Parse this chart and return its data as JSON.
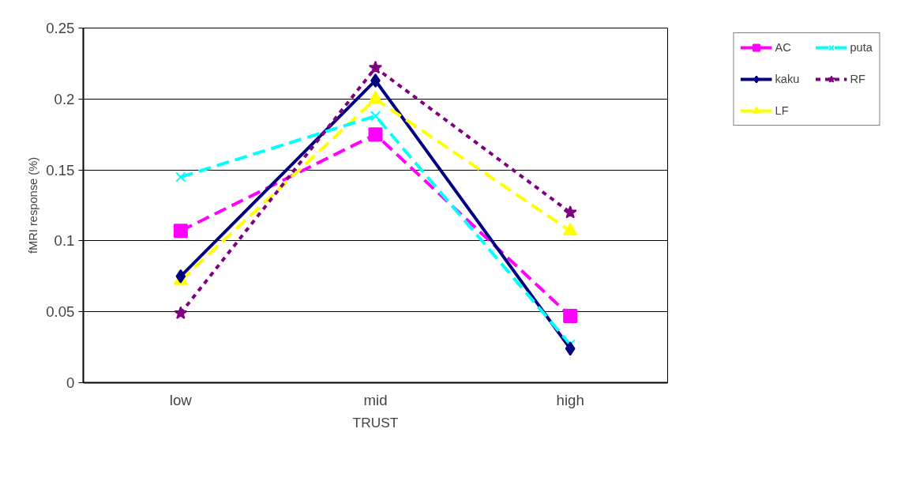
{
  "chart_data": {
    "type": "line",
    "xlabel": "TRUST",
    "ylabel": "fMRI response (%)",
    "categories": [
      "low",
      "mid",
      "high"
    ],
    "ylim": [
      0,
      0.25
    ],
    "yticks": [
      {
        "value": 0,
        "label": "0"
      },
      0.05,
      0.1,
      0.15,
      0.2,
      0.25
    ],
    "grid": "y",
    "legend": "right",
    "series": [
      {
        "name": "AC",
        "color": "#ff00ff",
        "values": [
          0.107,
          0.175,
          0.047
        ],
        "marker": "square",
        "line_style": "dashed"
      },
      {
        "name": "kaku",
        "color": "#000080",
        "values": [
          0.075,
          0.213,
          0.024
        ],
        "marker": "diamond",
        "line_style": "solid"
      },
      {
        "name": "LF",
        "color": "#ffff00",
        "values": [
          0.072,
          0.2,
          0.107
        ],
        "marker": "triangle",
        "line_style": "dashed"
      },
      {
        "name": "puta",
        "color": "#00ffff",
        "values": [
          0.145,
          0.188,
          0.027
        ],
        "marker": "cross",
        "line_style": "dashed"
      },
      {
        "name": "RF",
        "color": "#800080",
        "values": [
          0.049,
          0.222,
          0.12
        ],
        "marker": "star",
        "line_style": "dotted"
      }
    ]
  }
}
